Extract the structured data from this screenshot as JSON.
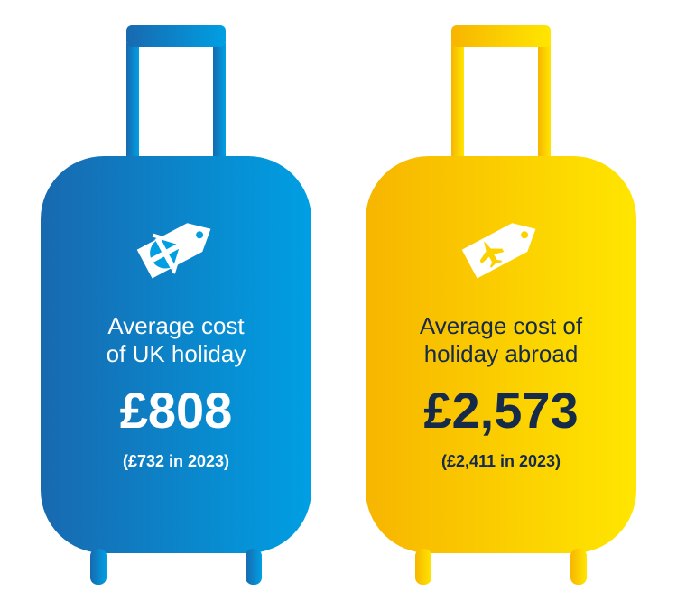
{
  "suitcases": [
    {
      "id": "uk",
      "label": "Average cost\nof UK holiday",
      "cost": "£808",
      "previous": "(£732 in 2023)",
      "gradient_start": "#1869af",
      "gradient_end": "#009fe3",
      "icon": "uk-flag"
    },
    {
      "id": "abroad",
      "label": "Average cost of\nholiday abroad",
      "cost": "£2,573",
      "previous": "(£2,411 in 2023)",
      "gradient_start": "#f7b500",
      "gradient_end": "#ffe600",
      "icon": "plane"
    }
  ],
  "text_colors": {
    "on_blue": "#ffffff",
    "on_yellow": "#162b4a"
  },
  "background_color": "#ffffff",
  "tag_color": "#ffffff"
}
